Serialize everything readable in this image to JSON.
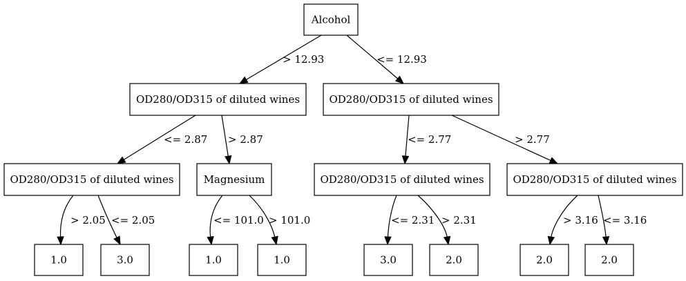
{
  "diagram": {
    "type": "decision-tree",
    "nodes": [
      {
        "id": "root",
        "label": "Alcohol"
      },
      {
        "id": "l",
        "label": "OD280/OD315 of diluted wines"
      },
      {
        "id": "r",
        "label": "OD280/OD315 of diluted wines"
      },
      {
        "id": "ll",
        "label": "OD280/OD315 of diluted wines"
      },
      {
        "id": "lr",
        "label": "Magnesium"
      },
      {
        "id": "rl",
        "label": "OD280/OD315 of diluted wines"
      },
      {
        "id": "rr",
        "label": "OD280/OD315 of diluted wines"
      },
      {
        "id": "lll",
        "label": "1.0"
      },
      {
        "id": "llr",
        "label": "3.0"
      },
      {
        "id": "lrl",
        "label": "1.0"
      },
      {
        "id": "lrr",
        "label": "1.0"
      },
      {
        "id": "rll",
        "label": "3.0"
      },
      {
        "id": "rlr",
        "label": "2.0"
      },
      {
        "id": "rrl",
        "label": "2.0"
      },
      {
        "id": "rrr",
        "label": "2.0"
      }
    ],
    "edges": [
      {
        "from": "root",
        "to": "l",
        "label": "> 12.93"
      },
      {
        "from": "root",
        "to": "r",
        "label": "<= 12.93"
      },
      {
        "from": "l",
        "to": "ll",
        "label": "<= 2.87"
      },
      {
        "from": "l",
        "to": "lr",
        "label": "> 2.87"
      },
      {
        "from": "r",
        "to": "rl",
        "label": "<= 2.77"
      },
      {
        "from": "r",
        "to": "rr",
        "label": "> 2.77"
      },
      {
        "from": "ll",
        "to": "lll",
        "label": "> 2.05"
      },
      {
        "from": "ll",
        "to": "llr",
        "label": "<= 2.05"
      },
      {
        "from": "lr",
        "to": "lrl",
        "label": "<= 101.0"
      },
      {
        "from": "lr",
        "to": "lrr",
        "label": "> 101.0"
      },
      {
        "from": "rl",
        "to": "rll",
        "label": "<= 2.31"
      },
      {
        "from": "rl",
        "to": "rlr",
        "label": "> 2.31"
      },
      {
        "from": "rr",
        "to": "rrl",
        "label": "> 3.16"
      },
      {
        "from": "rr",
        "to": "rrr",
        "label": "<= 3.16"
      }
    ]
  }
}
